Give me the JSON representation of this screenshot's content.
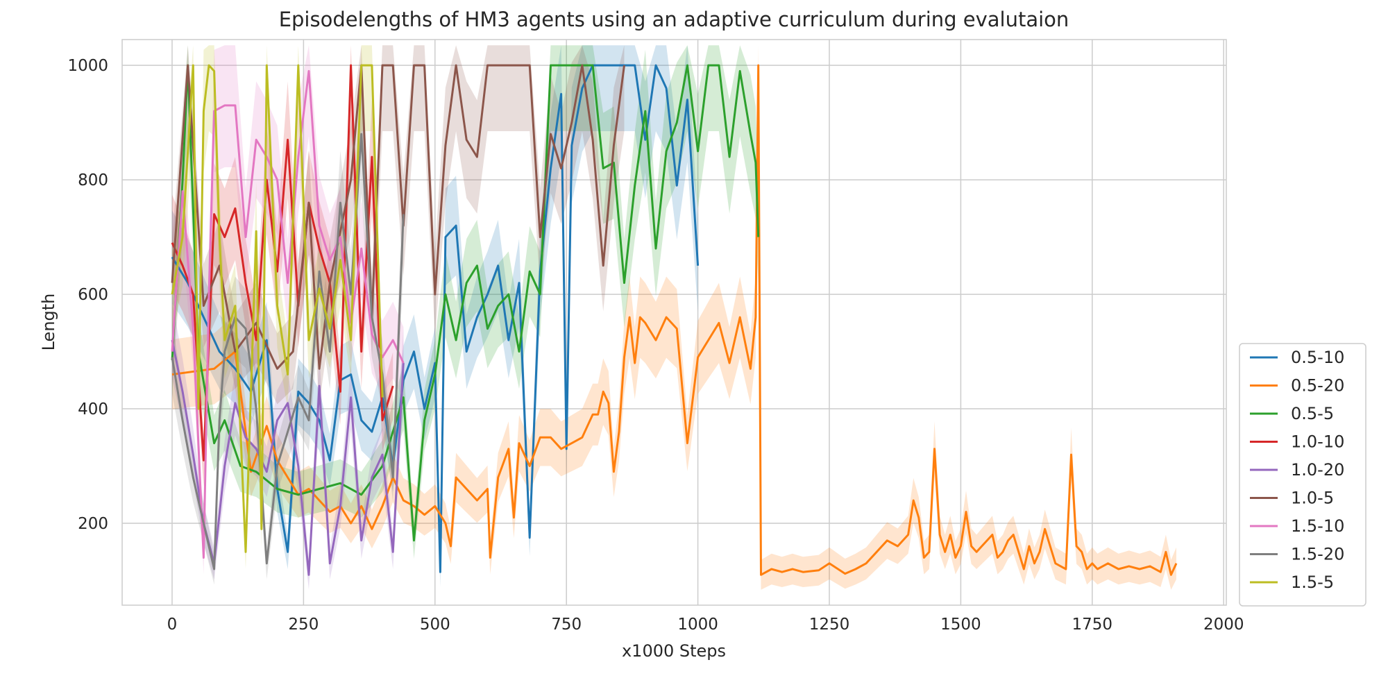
{
  "chart_data": {
    "type": "line",
    "title": "Episodelengths of HM3 agents using an adaptive curriculum during evalutaion",
    "xlabel": "x1000 Steps",
    "ylabel": "Length",
    "xlim": [
      -95,
      2005
    ],
    "ylim": [
      57,
      1045
    ],
    "xticks": [
      0,
      250,
      500,
      750,
      1000,
      1250,
      1500,
      1750,
      2000
    ],
    "yticks": [
      200,
      400,
      600,
      800,
      1000
    ],
    "grid": true,
    "legend_position": "lower-right-outside",
    "series": [
      {
        "name": "0.5-10",
        "color": "#1f77b4",
        "x": [
          0,
          30,
          60,
          90,
          120,
          150,
          180,
          200,
          220,
          240,
          260,
          280,
          300,
          320,
          340,
          360,
          380,
          400,
          420,
          440,
          460,
          480,
          500,
          510,
          520,
          540,
          560,
          580,
          600,
          620,
          640,
          660,
          680,
          700,
          720,
          740,
          750,
          760,
          780,
          800,
          820,
          840,
          860,
          880,
          900,
          920,
          940,
          960,
          980,
          1000
        ],
        "y": [
          665,
          620,
          560,
          500,
          470,
          430,
          520,
          260,
          150,
          430,
          410,
          380,
          310,
          450,
          460,
          380,
          360,
          420,
          300,
          450,
          500,
          400,
          480,
          115,
          700,
          720,
          500,
          560,
          600,
          650,
          520,
          620,
          175,
          640,
          820,
          950,
          330,
          860,
          960,
          1000,
          1000,
          1000,
          1000,
          1000,
          870,
          1000,
          960,
          790,
          940,
          650
        ]
      },
      {
        "name": "0.5-20",
        "color": "#ff7f0e",
        "x": [
          0,
          80,
          120,
          150,
          180,
          200,
          220,
          240,
          260,
          280,
          300,
          320,
          340,
          360,
          380,
          400,
          420,
          440,
          460,
          480,
          500,
          520,
          530,
          540,
          560,
          580,
          600,
          605,
          620,
          640,
          650,
          660,
          680,
          700,
          720,
          740,
          760,
          780,
          800,
          810,
          820,
          830,
          840,
          850,
          860,
          870,
          880,
          890,
          900,
          920,
          940,
          960,
          980,
          1000,
          1020,
          1040,
          1060,
          1080,
          1100,
          1110,
          1115,
          1120,
          1140,
          1160,
          1180,
          1200,
          1230,
          1250,
          1280,
          1300,
          1320,
          1340,
          1360,
          1380,
          1400,
          1410,
          1420,
          1430,
          1440,
          1450,
          1460,
          1470,
          1480,
          1490,
          1500,
          1510,
          1520,
          1530,
          1540,
          1560,
          1570,
          1580,
          1590,
          1600,
          1620,
          1630,
          1640,
          1650,
          1660,
          1680,
          1690,
          1700,
          1710,
          1720,
          1730,
          1740,
          1750,
          1760,
          1780,
          1800,
          1820,
          1840,
          1860,
          1880,
          1890,
          1900,
          1910
        ],
        "y": [
          460,
          470,
          500,
          290,
          370,
          310,
          280,
          250,
          260,
          240,
          220,
          230,
          200,
          230,
          190,
          230,
          280,
          240,
          230,
          215,
          230,
          200,
          160,
          280,
          260,
          240,
          260,
          140,
          280,
          330,
          210,
          340,
          300,
          350,
          350,
          330,
          340,
          350,
          390,
          390,
          430,
          410,
          290,
          360,
          490,
          560,
          480,
          560,
          550,
          520,
          560,
          540,
          340,
          490,
          520,
          550,
          480,
          560,
          470,
          560,
          1000,
          110,
          120,
          115,
          120,
          115,
          118,
          130,
          112,
          120,
          130,
          150,
          170,
          160,
          180,
          240,
          210,
          140,
          150,
          330,
          180,
          150,
          180,
          140,
          160,
          220,
          160,
          150,
          160,
          180,
          140,
          150,
          170,
          180,
          120,
          160,
          130,
          150,
          190,
          130,
          125,
          120,
          320,
          160,
          150,
          120,
          130,
          120,
          130,
          120,
          125,
          120,
          125,
          115,
          150,
          110,
          130
        ]
      },
      {
        "name": "0.5-5",
        "color": "#2ca02c",
        "x": [
          0,
          20,
          30,
          50,
          80,
          100,
          130,
          160,
          200,
          240,
          280,
          320,
          360,
          400,
          440,
          460,
          480,
          500,
          520,
          540,
          560,
          580,
          600,
          620,
          640,
          660,
          680,
          700,
          720,
          740,
          760,
          780,
          800,
          820,
          840,
          860,
          880,
          900,
          920,
          940,
          960,
          980,
          1000,
          1020,
          1040,
          1060,
          1080,
          1100,
          1110,
          1115
        ],
        "y": [
          485,
          800,
          1000,
          500,
          340,
          380,
          300,
          290,
          260,
          250,
          260,
          270,
          250,
          300,
          420,
          170,
          380,
          460,
          600,
          520,
          620,
          650,
          540,
          580,
          600,
          500,
          640,
          600,
          1000,
          1000,
          1000,
          1000,
          1000,
          820,
          830,
          620,
          790,
          920,
          680,
          850,
          900,
          1000,
          850,
          1000,
          1000,
          840,
          990,
          880,
          830,
          700
        ]
      },
      {
        "name": "1.0-10",
        "color": "#d62728",
        "x": [
          0,
          20,
          40,
          60,
          80,
          100,
          120,
          140,
          160,
          180,
          200,
          220,
          240,
          260,
          280,
          300,
          320,
          340,
          360,
          380,
          400,
          420
        ],
        "y": [
          690,
          650,
          600,
          310,
          740,
          700,
          750,
          620,
          520,
          800,
          640,
          870,
          580,
          760,
          680,
          620,
          430,
          1000,
          500,
          840,
          380,
          440
        ]
      },
      {
        "name": "1.0-20",
        "color": "#9467bd",
        "x": [
          0,
          20,
          40,
          60,
          80,
          100,
          120,
          140,
          160,
          180,
          200,
          220,
          240,
          260,
          280,
          300,
          320,
          340,
          360,
          380,
          400,
          420,
          440
        ],
        "y": [
          520,
          430,
          320,
          200,
          130,
          300,
          410,
          350,
          330,
          290,
          380,
          410,
          300,
          110,
          440,
          130,
          230,
          420,
          170,
          280,
          320,
          150,
          480
        ]
      },
      {
        "name": "1.0-5",
        "color": "#8c564b",
        "x": [
          0,
          30,
          60,
          90,
          120,
          160,
          200,
          230,
          260,
          280,
          300,
          340,
          360,
          380,
          400,
          420,
          440,
          460,
          480,
          500,
          520,
          540,
          560,
          580,
          600,
          620,
          640,
          660,
          680,
          700,
          720,
          740,
          760,
          780,
          800,
          820,
          840,
          860
        ],
        "y": [
          620,
          1000,
          580,
          650,
          500,
          550,
          470,
          500,
          760,
          470,
          620,
          800,
          1000,
          560,
          1000,
          1000,
          720,
          1000,
          1000,
          600,
          860,
          1000,
          870,
          840,
          1000,
          1000,
          1000,
          1000,
          1000,
          700,
          880,
          820,
          900,
          1000,
          870,
          650,
          860,
          1000
        ]
      },
      {
        "name": "1.5-10",
        "color": "#e377c2",
        "x": [
          0,
          20,
          40,
          60,
          70,
          80,
          100,
          120,
          140,
          160,
          180,
          200,
          220,
          240,
          260,
          280,
          300,
          320,
          340,
          360,
          380,
          400,
          420,
          440
        ],
        "y": [
          500,
          780,
          540,
          140,
          600,
          920,
          930,
          930,
          700,
          870,
          840,
          800,
          620,
          840,
          990,
          720,
          660,
          700,
          550,
          680,
          530,
          490,
          520,
          480
        ]
      },
      {
        "name": "1.5-20",
        "color": "#7f7f7f",
        "x": [
          0,
          20,
          40,
          60,
          80,
          90,
          100,
          120,
          140,
          160,
          180,
          200,
          220,
          240,
          260,
          280,
          300,
          320,
          340,
          360,
          380,
          400,
          420,
          440
        ],
        "y": [
          490,
          380,
          280,
          200,
          120,
          380,
          500,
          560,
          540,
          400,
          130,
          300,
          360,
          420,
          380,
          640,
          500,
          760,
          600,
          880,
          560,
          460,
          280,
          740
        ]
      },
      {
        "name": "1.5-5",
        "color": "#bcbd22",
        "x": [
          0,
          20,
          40,
          50,
          60,
          70,
          80,
          90,
          100,
          120,
          140,
          160,
          170,
          180,
          200,
          220,
          240,
          260,
          280,
          300,
          320,
          340,
          360,
          380,
          400
        ],
        "y": [
          600,
          700,
          1000,
          400,
          920,
          1000,
          990,
          700,
          520,
          580,
          150,
          710,
          190,
          1000,
          580,
          460,
          1000,
          520,
          610,
          540,
          660,
          520,
          1000,
          1000,
          420
        ]
      }
    ]
  }
}
